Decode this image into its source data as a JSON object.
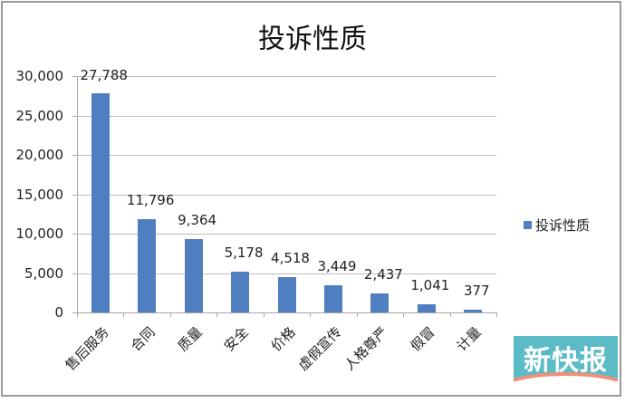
{
  "chart_data": {
    "type": "bar",
    "title": "投诉性质",
    "categories": [
      "售后服务",
      "合同",
      "质量",
      "安全",
      "价格",
      "虚假宣传",
      "人格尊严",
      "假冒",
      "计量"
    ],
    "series": [
      {
        "name": "投诉性质",
        "values": [
          27788,
          11796,
          9364,
          5178,
          4518,
          3449,
          2437,
          1041,
          377
        ],
        "color": "#4f7fc0"
      }
    ],
    "data_labels": [
      "27,788",
      "11,796",
      "9,364",
      "5,178",
      "4,518",
      "3,449",
      "2,437",
      "1,041",
      "377"
    ],
    "xlabel": "",
    "ylabel": "",
    "ylim": [
      0,
      30000
    ],
    "yticks": [
      0,
      5000,
      10000,
      15000,
      20000,
      25000,
      30000
    ],
    "ytick_labels": [
      "0",
      "5,000",
      "10,000",
      "15,000",
      "20,000",
      "25,000",
      "30,000"
    ],
    "grid": true,
    "legend": {
      "position": "right",
      "entries": [
        "投诉性质"
      ]
    }
  },
  "watermark": {
    "text": "新快报",
    "bg_color": "#5bbcc8",
    "accent_color": "#f0907a"
  }
}
